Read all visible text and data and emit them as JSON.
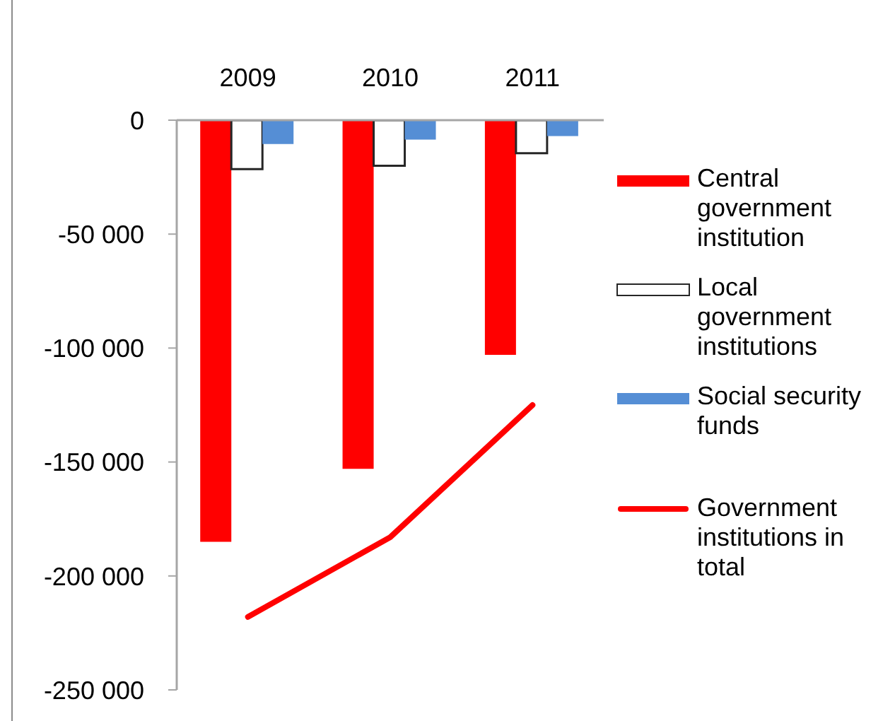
{
  "chart_data": {
    "type": "bar",
    "categories": [
      "2009",
      "2010",
      "2011"
    ],
    "series": [
      {
        "name": "Central government institution",
        "color": "#ff0000",
        "values": [
          -185000,
          -153000,
          -103000
        ]
      },
      {
        "name": "Local government institutions",
        "color": "#ffffff",
        "values": [
          -21500,
          -20000,
          -14500
        ]
      },
      {
        "name": "Social security funds",
        "color": "#558ed5",
        "values": [
          -10500,
          -8500,
          -7000
        ]
      },
      {
        "name": "Government institutions in total",
        "type": "line",
        "color": "#ff0000",
        "values": [
          -218000,
          -183000,
          -125000
        ]
      }
    ],
    "ylim": [
      -250000,
      0
    ],
    "yticks": [
      0,
      {
        "value": -50000,
        "label": "-50 000"
      },
      {
        "value": -100000,
        "label": "-100 000"
      },
      {
        "value": -150000,
        "label": "-150 000"
      },
      {
        "value": -200000,
        "label": "-200 000"
      },
      {
        "value": -250000,
        "label": "-250 000"
      }
    ],
    "legend": "right",
    "marker": "none"
  }
}
